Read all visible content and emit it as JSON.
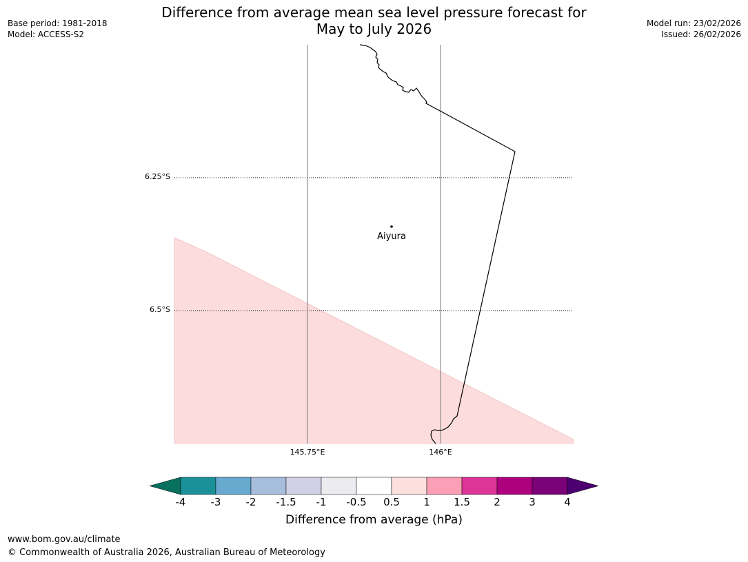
{
  "header": {
    "title_line1": "Difference from average mean sea level pressure forecast for",
    "title_line2": "May to July 2026",
    "base_period": "Base period: 1981-2018",
    "model": "Model: ACCESS-S2",
    "model_run": "Model run: 23/02/2026",
    "issued": "Issued: 26/02/2026"
  },
  "map": {
    "lat_labels": [
      "6.25°S",
      "6.5°S"
    ],
    "lon_labels": [
      "145.75°E",
      "146°E"
    ],
    "place_name": "Aiyura",
    "fill_colour": "#fcdcdc",
    "coast_colour": "#000000"
  },
  "colorbar": {
    "title": "Difference from average (hPa)",
    "ticks": [
      "-4",
      "-3",
      "-2",
      "-1.5",
      "-1",
      "-0.5",
      "0.5",
      "1",
      "1.5",
      "2",
      "3",
      "4"
    ],
    "under_colour": "#08705f",
    "over_colour": "#4c0070",
    "colours": [
      "#1a9099",
      "#67a9cf",
      "#a6bddb",
      "#d0d1e6",
      "#ececf0",
      "#ffffff",
      "#fde0dd",
      "#fa9fb5",
      "#dd3497",
      "#ae017e",
      "#7a0177"
    ]
  },
  "footer": {
    "website": "www.bom.gov.au/climate",
    "copyright": "© Commonwealth of Australia 2026, Australian Bureau of Meteorology"
  }
}
